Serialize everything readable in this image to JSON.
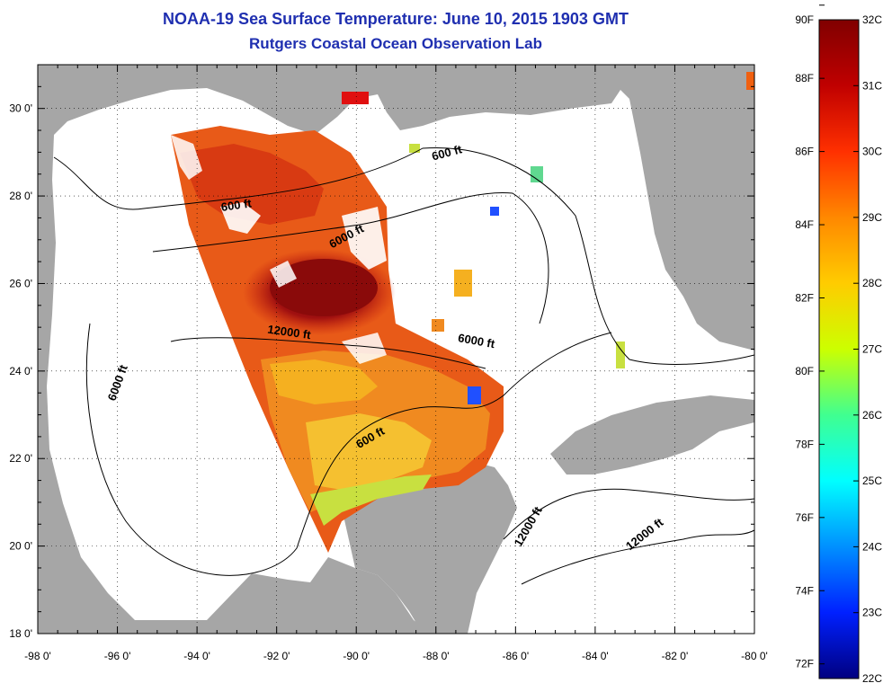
{
  "title": "NOAA-19 Sea Surface Temperature:  June 10, 2015 1903 GMT",
  "subtitle": "Rutgers Coastal Ocean Observation Lab",
  "colors": {
    "land": "#a6a6a6",
    "ocean": "#ffffff",
    "title_text": "#1f2fb0",
    "sst_warm": "#c81e10",
    "sst_hot": "#8a0a0a",
    "sst_mid": "#f5b020",
    "sst_cool": "#b8e040"
  },
  "map": {
    "lon_range": [
      -98,
      -80
    ],
    "lat_range": [
      18,
      31
    ],
    "lon_ticks": [
      "-98 0'",
      "-96 0'",
      "-94 0'",
      "-92 0'",
      "-90 0'",
      "-88 0'",
      "-86 0'",
      "-84 0'",
      "-82 0'",
      "-80 0'"
    ],
    "lat_ticks": [
      "18 0'",
      "20 0'",
      "22 0'",
      "24 0'",
      "26 0'",
      "28 0'",
      "30 0'"
    ],
    "gridlines": "dotted",
    "contour_labels": [
      {
        "text": "600 ft",
        "lon": -93.0,
        "lat": 27.7,
        "angle": -8
      },
      {
        "text": "600 ft",
        "lon": -87.7,
        "lat": 28.9,
        "angle": -15
      },
      {
        "text": "6000 ft",
        "lon": -90.2,
        "lat": 27.0,
        "angle": -28
      },
      {
        "text": "12000 ft",
        "lon": -91.7,
        "lat": 24.8,
        "angle": 8
      },
      {
        "text": "6000 ft",
        "lon": -95.9,
        "lat": 23.7,
        "angle": -70
      },
      {
        "text": "6000 ft",
        "lon": -87.0,
        "lat": 24.6,
        "angle": 10
      },
      {
        "text": "600 ft",
        "lon": -89.6,
        "lat": 22.4,
        "angle": -30
      },
      {
        "text": "12000 ft",
        "lon": -85.6,
        "lat": 20.4,
        "angle": -60
      },
      {
        "text": "12000 ft",
        "lon": -82.7,
        "lat": 20.2,
        "angle": -38
      }
    ]
  },
  "colorbar": {
    "range_c": [
      22,
      32
    ],
    "labels_f": [
      "90F",
      "88F",
      "86F",
      "84F",
      "82F",
      "80F",
      "78F",
      "76F",
      "74F",
      "72F"
    ],
    "labels_c": [
      "32C",
      "31C",
      "30C",
      "29C",
      "28C",
      "27C",
      "26C",
      "25C",
      "24C",
      "23C",
      "22C"
    ],
    "values_f": [
      90,
      88,
      86,
      84,
      82,
      80,
      78,
      76,
      74,
      72
    ],
    "values_c": [
      32,
      31,
      30,
      29,
      28,
      27,
      26,
      25,
      24,
      23,
      22
    ]
  }
}
